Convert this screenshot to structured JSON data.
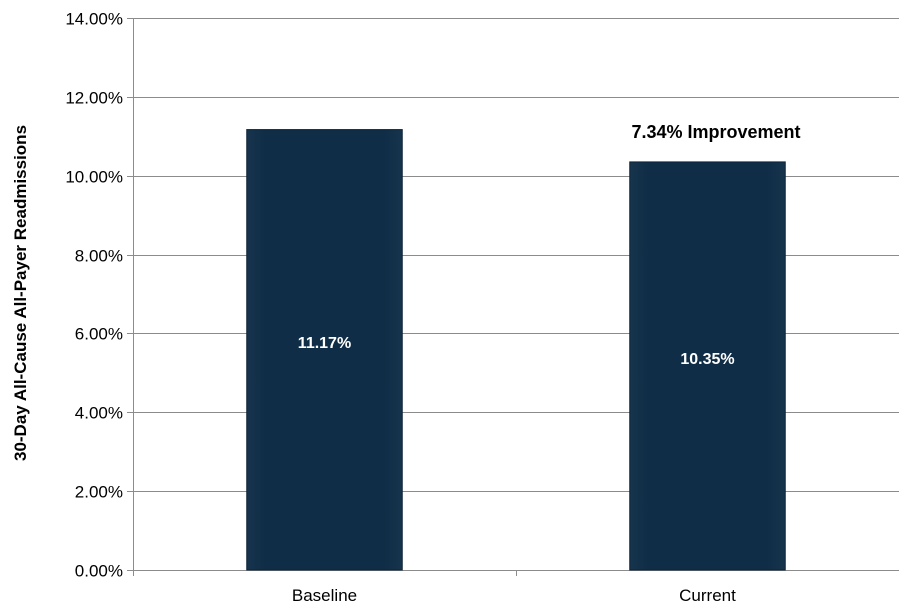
{
  "chart_data": {
    "type": "bar",
    "title": "",
    "xlabel": "",
    "ylabel": "30-Day All-Cause All-Payer Readmissions",
    "categories": [
      "Baseline",
      "Current"
    ],
    "values": [
      11.17,
      10.35
    ],
    "data_labels": [
      "11.17%",
      "10.35%"
    ],
    "ylim": [
      0,
      14
    ],
    "y_ticks": [
      0,
      2,
      4,
      6,
      8,
      10,
      12,
      14
    ],
    "y_tick_labels": [
      "0.00%",
      "2.00%",
      "4.00%",
      "6.00%",
      "8.00%",
      "10.00%",
      "12.00%",
      "14.00%"
    ],
    "grid": true,
    "legend": "none",
    "bar_color": "#0f2d46",
    "annotation": "7.34% Improvement"
  }
}
